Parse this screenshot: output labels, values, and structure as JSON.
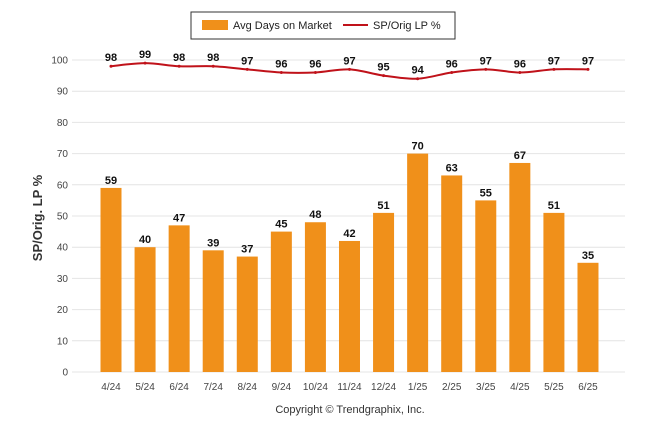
{
  "chart_data": {
    "type": "bar",
    "categories": [
      "4/24",
      "5/24",
      "6/24",
      "7/24",
      "8/24",
      "9/24",
      "10/24",
      "11/24",
      "12/24",
      "1/25",
      "2/25",
      "3/25",
      "4/25",
      "5/25",
      "6/25"
    ],
    "series": [
      {
        "name": "Avg Days on Market",
        "type": "bar",
        "color": "#f0901a",
        "values": [
          59,
          40,
          47,
          39,
          37,
          45,
          48,
          42,
          51,
          70,
          63,
          55,
          67,
          51,
          35
        ]
      },
      {
        "name": "SP/Orig LP %",
        "type": "line",
        "color": "#c0121a",
        "values": [
          98,
          99,
          98,
          98,
          97,
          96,
          96,
          97,
          95,
          94,
          96,
          97,
          96,
          97,
          97
        ]
      }
    ],
    "ylabel": "SP/Orig. LP %",
    "ylim": [
      0,
      100
    ],
    "yticks": [
      0,
      10,
      20,
      30,
      40,
      50,
      60,
      70,
      80,
      90,
      100
    ],
    "grid": true,
    "legend_position": "top-center"
  },
  "footer": {
    "copyright": "Copyright © Trendgraphix, Inc."
  }
}
